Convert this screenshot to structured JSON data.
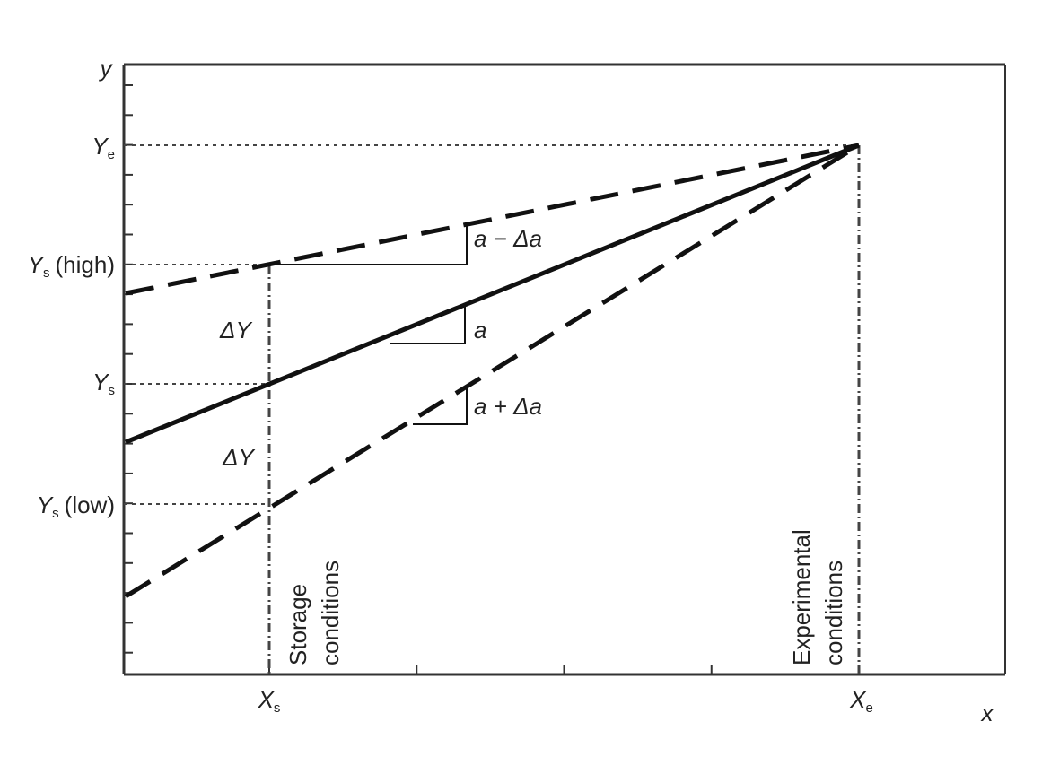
{
  "axes": {
    "y_label": "y",
    "x_label": "x"
  },
  "y_labels": [
    {
      "main": "Y",
      "sub": "e"
    },
    {
      "main": "Y",
      "sub": "s",
      "suffix": "(high)"
    },
    {
      "main": "Y",
      "sub": "s"
    },
    {
      "main": "Y",
      "sub": "s",
      "suffix": "(low)"
    }
  ],
  "x_labels": [
    {
      "main": "X",
      "sub": "s"
    },
    {
      "main": "X",
      "sub": "e"
    }
  ],
  "slopes": {
    "upper": "a − Δa",
    "middle": "a",
    "lower": "a + Δa"
  },
  "deltas": [
    "ΔY",
    "ΔY"
  ],
  "conditions": {
    "storage": [
      "Storage",
      "conditions"
    ],
    "experimental": [
      "Experimental",
      "conditions"
    ]
  }
}
